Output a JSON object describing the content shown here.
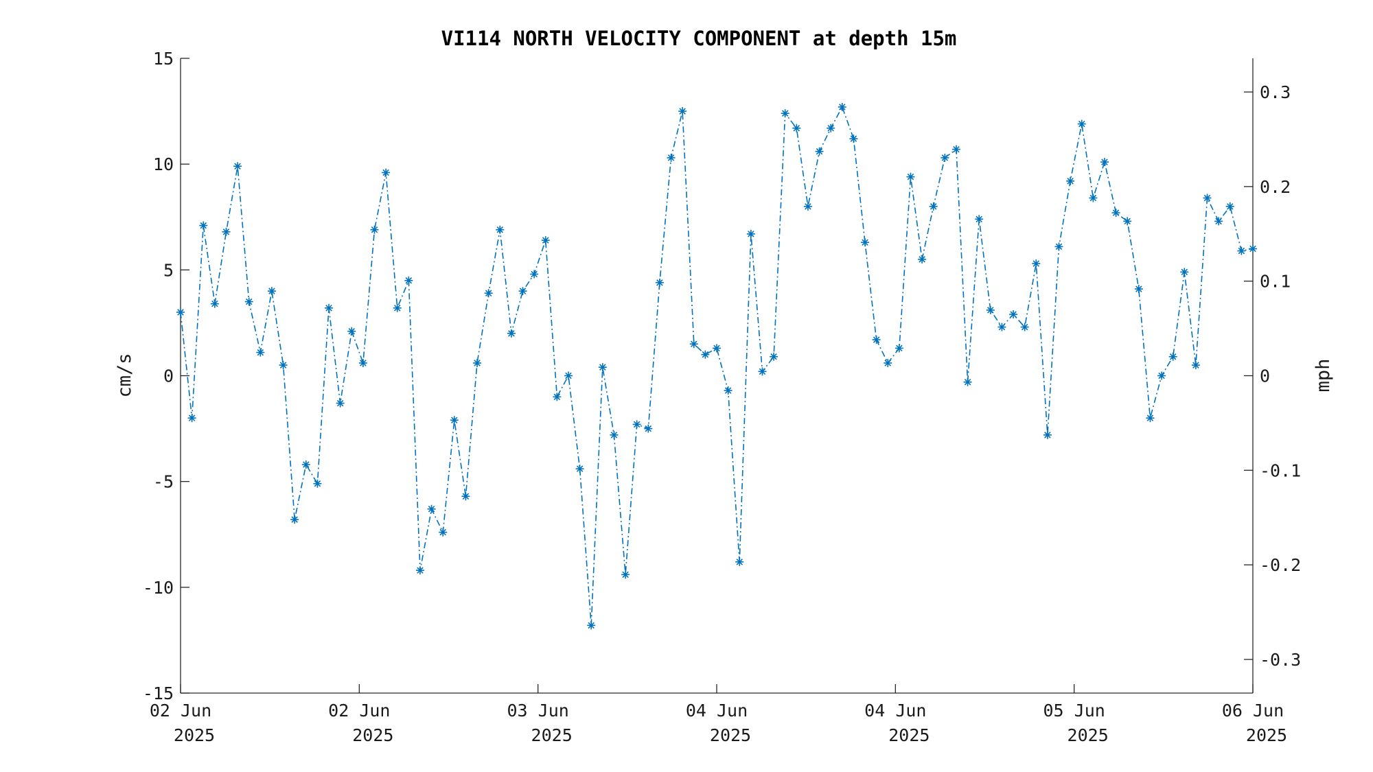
{
  "chart_data": {
    "type": "line",
    "title": "VI114 NORTH VELOCITY COMPONENT at depth 15m",
    "ylabel": "cm/s",
    "y2label": "mph",
    "ylim": [
      -15,
      15
    ],
    "y2lim": [
      -0.3356,
      0.3356
    ],
    "yticks": [
      "15",
      "10",
      "5",
      "0",
      "-5",
      "-10",
      "-15"
    ],
    "y2ticks": [
      "0.3",
      "0.2",
      "0.1",
      "0",
      "-0.1",
      "-0.2",
      "-0.3"
    ],
    "xticks": [
      {
        "day": "02 Jun",
        "year": "2025"
      },
      {
        "day": "02 Jun",
        "year": "2025"
      },
      {
        "day": "03 Jun",
        "year": "2025"
      },
      {
        "day": "04 Jun",
        "year": "2025"
      },
      {
        "day": "04 Jun",
        "year": "2025"
      },
      {
        "day": "05 Jun",
        "year": "2025"
      },
      {
        "day": "06 Jun",
        "year": "2025"
      }
    ],
    "grid": false,
    "line_style": "dash-dot",
    "marker": "asterisk",
    "color": "#0072BD",
    "values": [
      3.0,
      -2.0,
      7.1,
      3.4,
      6.8,
      9.9,
      3.5,
      1.1,
      4.0,
      0.5,
      -6.8,
      -4.2,
      -5.1,
      3.2,
      -1.3,
      2.1,
      0.6,
      6.9,
      9.6,
      3.2,
      4.5,
      -9.2,
      -6.3,
      -7.4,
      -2.1,
      -5.7,
      0.6,
      3.9,
      6.9,
      2.0,
      4.0,
      4.8,
      6.4,
      -1.0,
      0.0,
      -4.4,
      -11.8,
      0.4,
      -2.8,
      -9.4,
      -2.3,
      -2.5,
      4.4,
      10.3,
      12.5,
      1.5,
      1.0,
      1.3,
      -0.7,
      -8.8,
      6.7,
      0.2,
      0.9,
      12.4,
      11.7,
      8.0,
      10.6,
      11.7,
      12.7,
      11.2,
      6.3,
      1.7,
      0.6,
      1.3,
      9.4,
      5.5,
      8.0,
      10.3,
      10.7,
      -0.3,
      7.4,
      3.1,
      2.3,
      2.9,
      2.3,
      5.3,
      -2.8,
      6.1,
      9.2,
      11.9,
      8.4,
      10.1,
      7.7,
      7.3,
      4.1,
      -2.0,
      0.0,
      0.9,
      4.9,
      0.5,
      8.4,
      7.3,
      8.0,
      5.9,
      6.0
    ]
  }
}
